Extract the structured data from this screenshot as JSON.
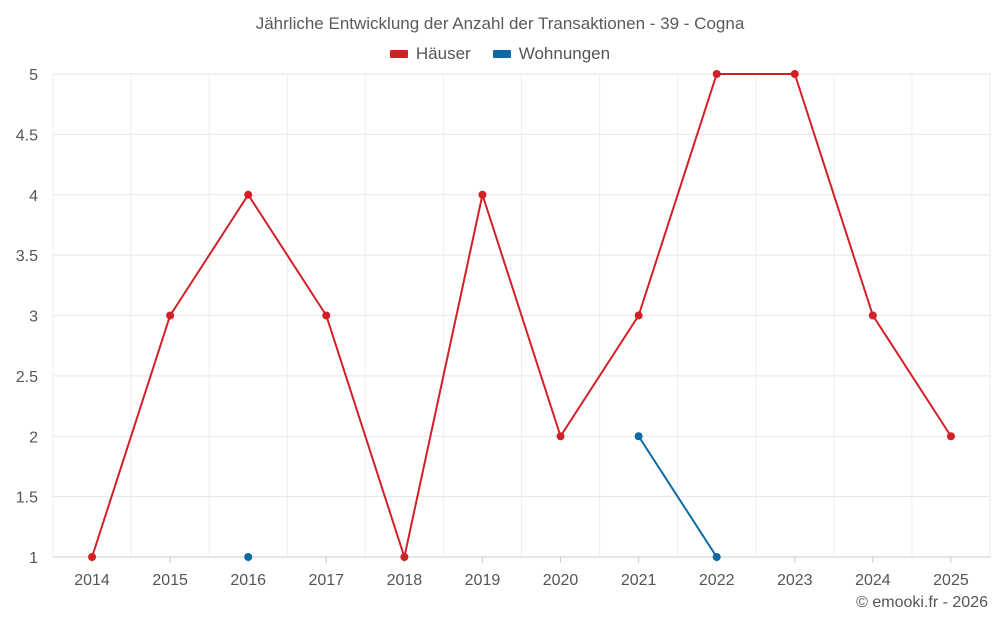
{
  "chart_data": {
    "type": "line",
    "title": "Jährliche Entwicklung der Anzahl der Transaktionen - 39 - Cogna",
    "x": [
      "2014",
      "2015",
      "2016",
      "2017",
      "2018",
      "2019",
      "2020",
      "2021",
      "2022",
      "2023",
      "2024",
      "2025"
    ],
    "yticks": [
      "1",
      "1.5",
      "2",
      "2.5",
      "3",
      "3.5",
      "4",
      "4.5",
      "5"
    ],
    "ylim": [
      1,
      5
    ],
    "grid": true,
    "legend_position": "top-center",
    "series": [
      {
        "name": "Häuser",
        "color": "#d32027",
        "values": [
          1,
          3,
          4,
          3,
          1,
          4,
          2,
          3,
          5,
          5,
          3,
          2
        ]
      },
      {
        "name": "Wohnungen",
        "color": "#0b6aa2",
        "values": [
          null,
          null,
          1,
          null,
          null,
          null,
          null,
          2,
          1,
          null,
          null,
          null
        ]
      }
    ]
  },
  "credit": "© emooki.fr - 2026"
}
